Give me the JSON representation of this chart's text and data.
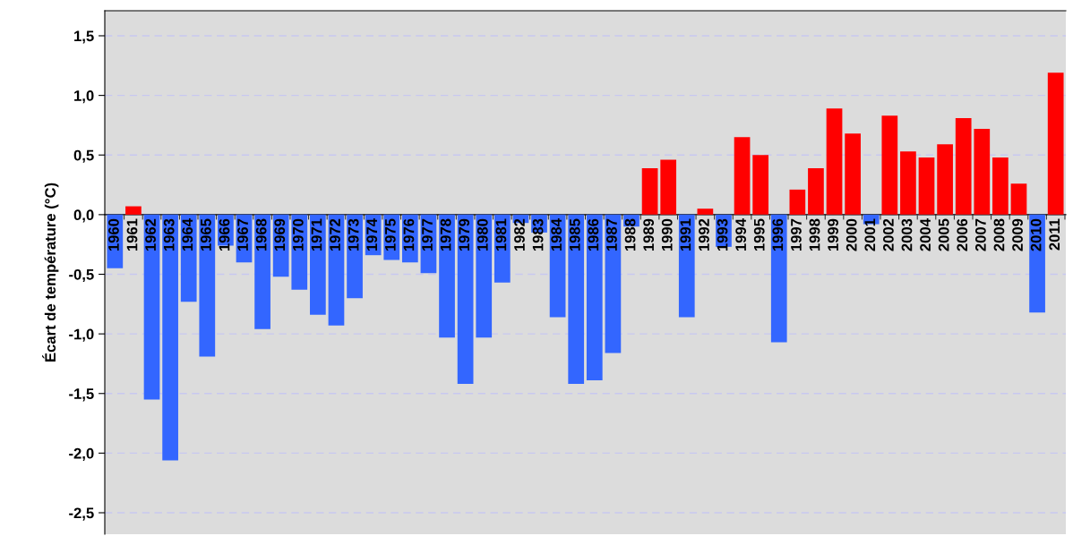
{
  "chart_data": {
    "type": "bar",
    "ylabel": "Écart de température (°C)",
    "categories": [
      "1960",
      "1961",
      "1962",
      "1963",
      "1964",
      "1965",
      "1966",
      "1967",
      "1968",
      "1969",
      "1970",
      "1971",
      "1972",
      "1973",
      "1974",
      "1975",
      "1976",
      "1977",
      "1978",
      "1979",
      "1980",
      "1981",
      "1982",
      "1983",
      "1984",
      "1985",
      "1986",
      "1987",
      "1988",
      "1989",
      "1990",
      "1991",
      "1992",
      "1993",
      "1994",
      "1995",
      "1996",
      "1997",
      "1998",
      "1999",
      "2000",
      "2001",
      "2002",
      "2003",
      "2004",
      "2005",
      "2006",
      "2007",
      "2008",
      "2009",
      "2010",
      "2011"
    ],
    "values": [
      -0.45,
      0.07,
      -1.55,
      -2.06,
      -0.73,
      -1.19,
      -0.26,
      -0.4,
      -0.96,
      -0.52,
      -0.63,
      -0.84,
      -0.93,
      -0.7,
      -0.34,
      -0.38,
      -0.4,
      -0.49,
      -1.03,
      -1.42,
      -1.03,
      -0.57,
      -0.07,
      -0.15,
      -0.86,
      -1.42,
      -1.39,
      -1.16,
      -0.1,
      0.39,
      0.46,
      -0.86,
      0.05,
      -0.27,
      0.65,
      0.5,
      -1.07,
      0.21,
      0.39,
      0.89,
      0.68,
      -0.08,
      0.83,
      0.53,
      0.48,
      0.59,
      0.81,
      0.72,
      0.48,
      0.26,
      -0.82,
      1.19
    ],
    "colors": [
      "#3366ff",
      "#ff0000",
      "#3366ff",
      "#3366ff",
      "#3366ff",
      "#3366ff",
      "#3366ff",
      "#3366ff",
      "#3366ff",
      "#3366ff",
      "#3366ff",
      "#3366ff",
      "#3366ff",
      "#3366ff",
      "#3366ff",
      "#3366ff",
      "#3366ff",
      "#3366ff",
      "#3366ff",
      "#3366ff",
      "#3366ff",
      "#3366ff",
      "#3366ff",
      "#3366ff",
      "#3366ff",
      "#3366ff",
      "#3366ff",
      "#3366ff",
      "#3366ff",
      "#ff0000",
      "#ff0000",
      "#3366ff",
      "#ff0000",
      "#3366ff",
      "#ff0000",
      "#ff0000",
      "#3366ff",
      "#ff0000",
      "#ff0000",
      "#ff0000",
      "#ff0000",
      "#3366ff",
      "#ff0000",
      "#ff0000",
      "#ff0000",
      "#ff0000",
      "#ff0000",
      "#ff0000",
      "#ff0000",
      "#ff0000",
      "#3366ff",
      "#ff0000"
    ],
    "ylim": [
      -2.68,
      1.71
    ],
    "yticks": [
      {
        "value": -2.5,
        "label": "-2,5"
      },
      {
        "value": -2.0,
        "label": "-2,0"
      },
      {
        "value": -1.5,
        "label": "-1,5"
      },
      {
        "value": -1.0,
        "label": "-1,0"
      },
      {
        "value": -0.5,
        "label": "-0,5"
      },
      {
        "value": 0,
        "label": "0,0"
      },
      {
        "value": 0.5,
        "label": "0,5"
      },
      {
        "value": 1.0,
        "label": "1,0"
      },
      {
        "value": 1.5,
        "label": "1,5"
      }
    ],
    "grid": "y"
  }
}
